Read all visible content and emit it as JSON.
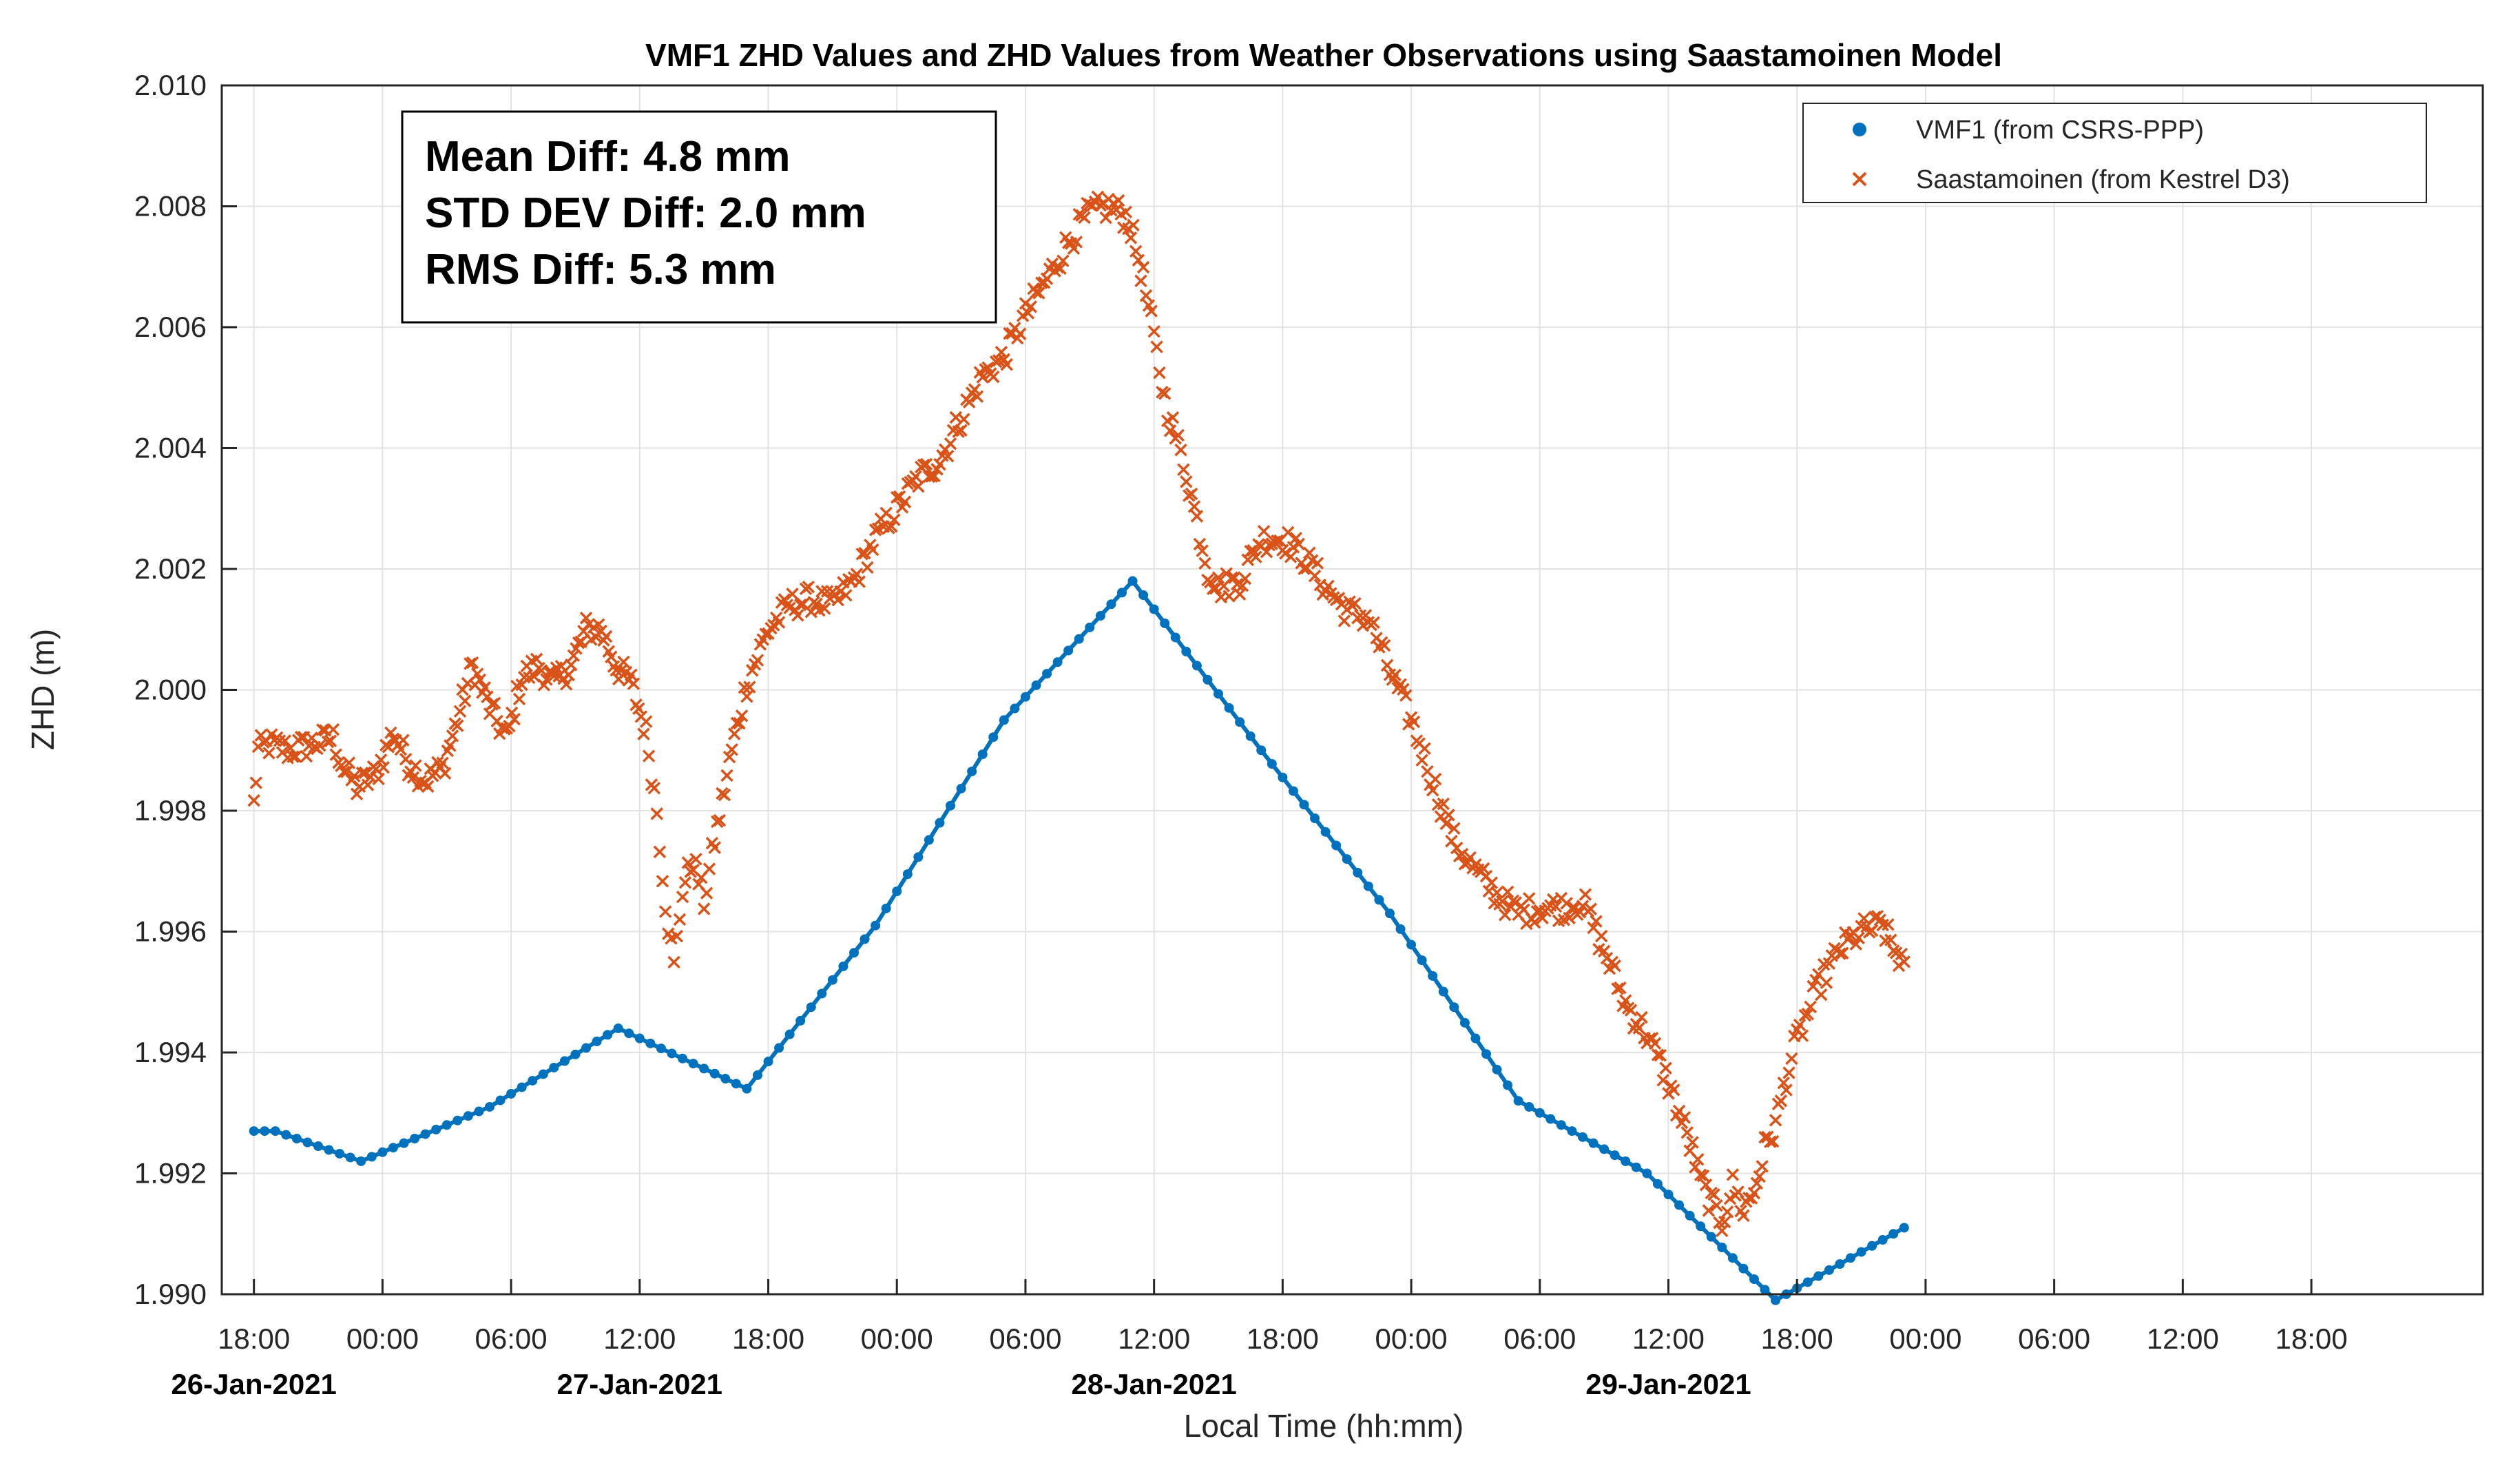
{
  "chart_data": {
    "type": "line+scatter",
    "title": "VMF1 ZHD Values and ZHD Values from Weather Observations using Saastamoinen Model",
    "xlabel": "Local Time (hh:mm)",
    "ylabel": "ZHD (m)",
    "ylim": [
      1.99,
      2.01
    ],
    "xlim_hours": [
      -7.5,
      98
    ],
    "y_ticks": [
      "1.990",
      "1.992",
      "1.994",
      "1.996",
      "1.998",
      "2.000",
      "2.002",
      "2.004",
      "2.006",
      "2.008",
      "2.010"
    ],
    "x_ticks": [
      {
        "hour": -6,
        "label": "18:00"
      },
      {
        "hour": 0,
        "label": "00:00"
      },
      {
        "hour": 6,
        "label": "06:00"
      },
      {
        "hour": 12,
        "label": "12:00"
      },
      {
        "hour": 18,
        "label": "18:00"
      },
      {
        "hour": 24,
        "label": "00:00"
      },
      {
        "hour": 30,
        "label": "06:00"
      },
      {
        "hour": 36,
        "label": "12:00"
      },
      {
        "hour": 42,
        "label": "18:00"
      },
      {
        "hour": 48,
        "label": "00:00"
      },
      {
        "hour": 54,
        "label": "06:00"
      },
      {
        "hour": 60,
        "label": "12:00"
      },
      {
        "hour": 66,
        "label": "18:00"
      },
      {
        "hour": 72,
        "label": "00:00"
      },
      {
        "hour": 78,
        "label": "06:00"
      },
      {
        "hour": 84,
        "label": "12:00"
      },
      {
        "hour": 90,
        "label": "18:00"
      }
    ],
    "date_labels": [
      {
        "hour": -6,
        "label": "26-Jan-2021"
      },
      {
        "hour": 12,
        "label": "27-Jan-2021"
      },
      {
        "hour": 36,
        "label": "28-Jan-2021"
      },
      {
        "hour": 60,
        "label": "29-Jan-2021"
      }
    ],
    "grid": true,
    "legend_position": "top-right",
    "stats_box": {
      "lines": [
        "Mean Diff: 4.8 mm",
        "STD DEV Diff: 2.0 mm",
        "RMS Diff: 5.3 mm"
      ]
    },
    "series": [
      {
        "name": "VMF1 (from CSRS-PPP)",
        "marker": "dot",
        "color": "#0072BD",
        "knots": [
          [
            -6.0,
            1.9927
          ],
          [
            -5.0,
            1.9927
          ],
          [
            -1.0,
            1.9922
          ],
          [
            5.0,
            1.9931
          ],
          [
            11.0,
            1.9944
          ],
          [
            17.0,
            1.9934
          ],
          [
            23.0,
            1.9961
          ],
          [
            29.0,
            1.9995
          ],
          [
            35.0,
            2.0018
          ],
          [
            41.0,
            1.999
          ],
          [
            47.0,
            1.9963
          ],
          [
            53.0,
            1.9932
          ],
          [
            59.0,
            1.992
          ],
          [
            65.0,
            1.9899
          ],
          [
            71.0,
            1.9911
          ]
        ],
        "sample_interval_hours": 0.5
      },
      {
        "name": "Saastamoinen (from Kestrel D3)",
        "marker": "x",
        "color": "#D95319",
        "points": [
          [
            -6.0,
            1.9981
          ],
          [
            -5.8,
            1.999
          ],
          [
            -5.3,
            1.9991
          ],
          [
            -4.3,
            1.999
          ],
          [
            -3.3,
            1.9991
          ],
          [
            -2.3,
            1.9992
          ],
          [
            -1.8,
            1.9987
          ],
          [
            -1.2,
            1.9984
          ],
          [
            -0.3,
            1.9986
          ],
          [
            0.5,
            1.9993
          ],
          [
            1.2,
            1.9988
          ],
          [
            2.0,
            1.9985
          ],
          [
            2.8,
            1.9987
          ],
          [
            3.5,
            1.9995
          ],
          [
            4.2,
            2.0004
          ],
          [
            5.0,
            1.9997
          ],
          [
            5.8,
            1.9992
          ],
          [
            6.5,
            2.0002
          ],
          [
            7.3,
            2.0004
          ],
          [
            8.0,
            2.0001
          ],
          [
            8.8,
            2.0004
          ],
          [
            9.5,
            2.001
          ],
          [
            10.2,
            2.001
          ],
          [
            10.9,
            2.0004
          ],
          [
            11.6,
            2.0001
          ],
          [
            12.3,
            1.9993
          ],
          [
            12.8,
            1.998
          ],
          [
            13.2,
            1.9965
          ],
          [
            13.6,
            1.9954
          ],
          [
            14.0,
            1.9967
          ],
          [
            14.5,
            1.9972
          ],
          [
            15.0,
            1.9965
          ],
          [
            15.5,
            1.9975
          ],
          [
            16.3,
            1.999
          ],
          [
            17.0,
            2.0001
          ],
          [
            18.0,
            2.001
          ],
          [
            19.0,
            2.0014
          ],
          [
            20.0,
            2.0015
          ],
          [
            21.0,
            2.0014
          ],
          [
            22.0,
            2.0018
          ],
          [
            23.0,
            2.0025
          ],
          [
            24.0,
            2.003
          ],
          [
            25.0,
            2.0035
          ],
          [
            26.0,
            2.0038
          ],
          [
            27.0,
            2.0045
          ],
          [
            28.0,
            2.0052
          ],
          [
            29.0,
            2.0055
          ],
          [
            30.0,
            2.0062
          ],
          [
            31.0,
            2.0068
          ],
          [
            32.0,
            2.0074
          ],
          [
            33.0,
            2.0079
          ],
          [
            34.0,
            2.008
          ],
          [
            34.8,
            2.0078
          ],
          [
            35.5,
            2.0068
          ],
          [
            36.0,
            2.0058
          ],
          [
            36.5,
            2.0048
          ],
          [
            37.0,
            2.0042
          ],
          [
            37.5,
            2.0036
          ],
          [
            38.0,
            2.0028
          ],
          [
            38.5,
            2.002
          ],
          [
            39.0,
            2.0017
          ],
          [
            40.0,
            2.0018
          ],
          [
            41.0,
            2.0025
          ],
          [
            42.0,
            2.0025
          ],
          [
            43.0,
            2.0022
          ],
          [
            44.0,
            2.0017
          ],
          [
            45.0,
            2.0013
          ],
          [
            46.0,
            2.0012
          ],
          [
            47.0,
            2.0003
          ],
          [
            48.0,
            1.9995
          ],
          [
            49.0,
            1.9985
          ],
          [
            50.0,
            1.9975
          ],
          [
            51.0,
            1.997
          ],
          [
            52.0,
            1.9966
          ],
          [
            53.0,
            1.9963
          ],
          [
            54.0,
            1.9964
          ],
          [
            55.0,
            1.9964
          ],
          [
            56.0,
            1.9965
          ],
          [
            57.0,
            1.9957
          ],
          [
            58.0,
            1.9948
          ],
          [
            59.0,
            1.9943
          ],
          [
            60.0,
            1.9935
          ],
          [
            61.0,
            1.9925
          ],
          [
            61.5,
            1.9919
          ],
          [
            62.0,
            1.9915
          ],
          [
            62.5,
            1.9912
          ],
          [
            63.0,
            1.9918
          ],
          [
            63.5,
            1.9914
          ],
          [
            64.0,
            1.9917
          ],
          [
            64.5,
            1.9924
          ],
          [
            65.0,
            1.9928
          ],
          [
            65.5,
            1.9936
          ],
          [
            66.0,
            1.9942
          ],
          [
            67.0,
            1.9951
          ],
          [
            68.0,
            1.9957
          ],
          [
            69.0,
            1.996
          ],
          [
            70.0,
            1.9961
          ],
          [
            70.5,
            1.9957
          ],
          [
            71.0,
            1.9955
          ]
        ]
      }
    ]
  }
}
